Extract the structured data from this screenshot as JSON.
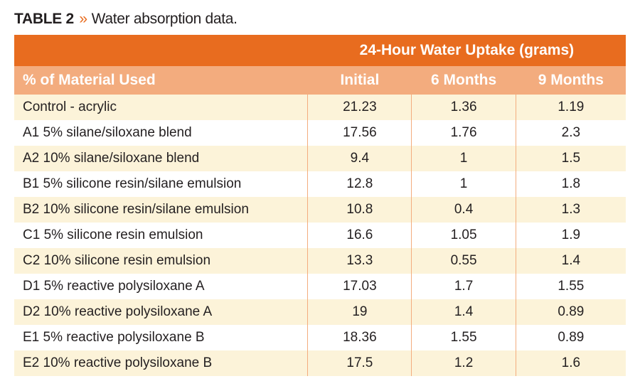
{
  "caption": {
    "label": "TABLE 2",
    "text": "Water absorption data."
  },
  "table": {
    "header_top": "24-Hour Water Uptake (grams)",
    "header_sub": {
      "material": "% of Material Used",
      "initial": "Initial",
      "m6": "6 Months",
      "m9": "9 Months"
    },
    "rows": [
      {
        "material": "Control - acrylic",
        "initial": "21.23",
        "m6": "1.36",
        "m9": "1.19"
      },
      {
        "material": "A1 5% silane/siloxane blend",
        "initial": "17.56",
        "m6": "1.76",
        "m9": "2.3"
      },
      {
        "material": "A2 10% silane/siloxane blend",
        "initial": "9.4",
        "m6": "1",
        "m9": "1.5"
      },
      {
        "material": "B1 5% silicone resin/silane emulsion",
        "initial": "12.8",
        "m6": "1",
        "m9": "1.8"
      },
      {
        "material": "B2 10%  silicone resin/silane  emulsion",
        "initial": "10.8",
        "m6": "0.4",
        "m9": "1.3"
      },
      {
        "material": "C1 5% silicone resin emulsion",
        "initial": "16.6",
        "m6": "1.05",
        "m9": "1.9"
      },
      {
        "material": "C2 10% silicone resin emulsion",
        "initial": "13.3",
        "m6": "0.55",
        "m9": "1.4"
      },
      {
        "material": "D1 5% reactive polysiloxane A",
        "initial": "17.03",
        "m6": "1.7",
        "m9": "1.55"
      },
      {
        "material": "D2 10% reactive polysiloxane A",
        "initial": "19",
        "m6": "1.4",
        "m9": "0.89"
      },
      {
        "material": "E1 5% reactive polysiloxane B",
        "initial": "18.36",
        "m6": "1.55",
        "m9": "0.89"
      },
      {
        "material": "E2 10% reactive polysiloxane B",
        "initial": "17.5",
        "m6": "1.2",
        "m9": "1.6"
      }
    ],
    "colors": {
      "header_orange": "#e86c1f",
      "subheader_lightorange": "#f3ac7e",
      "row_cream": "#fcf3d9",
      "row_white": "#ffffff",
      "text": "#231f20"
    }
  }
}
